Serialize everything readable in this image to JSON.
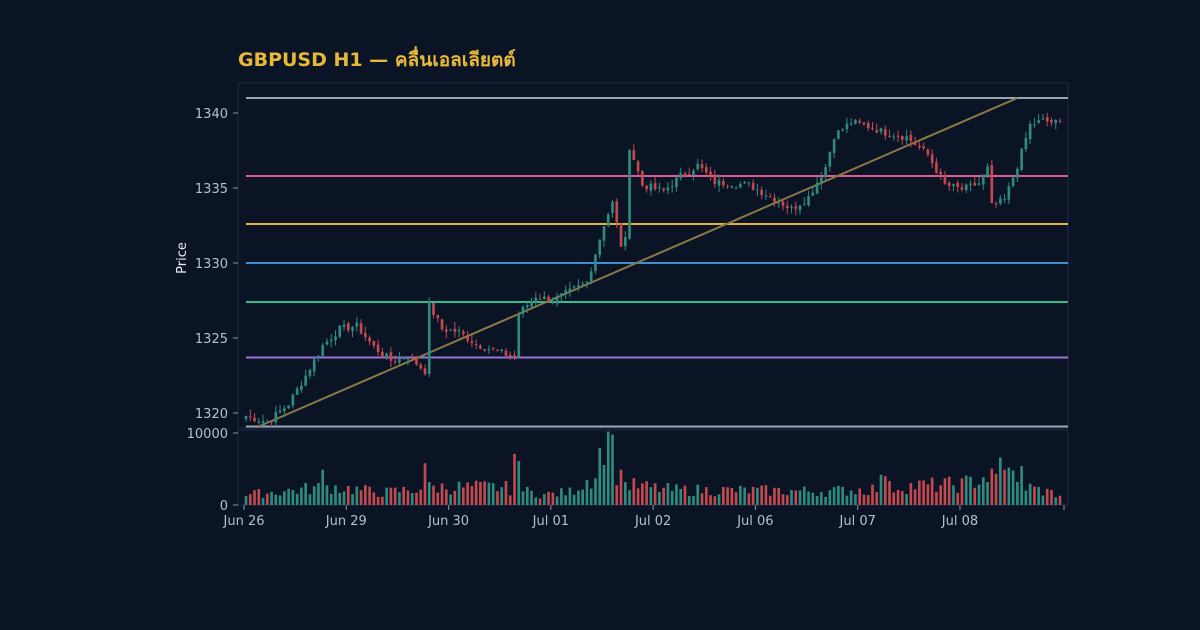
{
  "chart_data": {
    "type": "candlestick",
    "title": "GBPUSD H1 — คลื่นเอลเลียตต์",
    "ylabel": "Price",
    "ylim": [
      1319,
      1342
    ],
    "volume_ylim": [
      0,
      10000
    ],
    "y_ticks": [
      1320,
      1325,
      1330,
      1335,
      1340
    ],
    "volume_ticks": [
      0,
      10000
    ],
    "x_ticks": [
      {
        "index": 0,
        "label": "Jun 26"
      },
      {
        "index": 24,
        "label": "Jun 29"
      },
      {
        "index": 48,
        "label": "Jun 30"
      },
      {
        "index": 72,
        "label": "Jul 01"
      },
      {
        "index": 96,
        "label": "Jul 02"
      },
      {
        "index": 120,
        "label": "Jul 06"
      },
      {
        "index": 144,
        "label": "Jul 07"
      },
      {
        "index": 168,
        "label": "Jul 08"
      }
    ],
    "candle_count": 192,
    "close_path": [
      [
        0,
        1319.8
      ],
      [
        5,
        1319.4
      ],
      [
        10,
        1320.6
      ],
      [
        14,
        1322.5
      ],
      [
        18,
        1324.5
      ],
      [
        22,
        1325.6
      ],
      [
        26,
        1325.8
      ],
      [
        30,
        1324.4
      ],
      [
        34,
        1323.5
      ],
      [
        38,
        1323.8
      ],
      [
        42,
        1322.8
      ],
      [
        43,
        1327.2
      ],
      [
        46,
        1325.6
      ],
      [
        50,
        1325.4
      ],
      [
        54,
        1324.6
      ],
      [
        60,
        1324.0
      ],
      [
        63,
        1323.7
      ],
      [
        64,
        1326.6
      ],
      [
        68,
        1327.8
      ],
      [
        72,
        1327.5
      ],
      [
        76,
        1328.1
      ],
      [
        80,
        1328.7
      ],
      [
        84,
        1332.6
      ],
      [
        86,
        1334.0
      ],
      [
        88,
        1331.2
      ],
      [
        89,
        1331.5
      ],
      [
        90,
        1337.8
      ],
      [
        93,
        1335.2
      ],
      [
        98,
        1334.8
      ],
      [
        102,
        1335.8
      ],
      [
        106,
        1336.5
      ],
      [
        110,
        1335.4
      ],
      [
        114,
        1335.3
      ],
      [
        118,
        1335.2
      ],
      [
        122,
        1334.6
      ],
      [
        128,
        1333.6
      ],
      [
        132,
        1334.4
      ],
      [
        136,
        1336.4
      ],
      [
        138,
        1338.5
      ],
      [
        142,
        1339.4
      ],
      [
        146,
        1339.1
      ],
      [
        150,
        1338.7
      ],
      [
        155,
        1338.4
      ],
      [
        160,
        1337.2
      ],
      [
        164,
        1335.2
      ],
      [
        168,
        1334.9
      ],
      [
        172,
        1335.3
      ],
      [
        174,
        1336.3
      ],
      [
        175,
        1333.8
      ],
      [
        178,
        1334.2
      ],
      [
        181,
        1336.5
      ],
      [
        184,
        1339.2
      ],
      [
        187,
        1339.5
      ],
      [
        191,
        1339.3
      ]
    ],
    "volume_profile": [
      [
        0,
        1500
      ],
      [
        20,
        2700
      ],
      [
        32,
        1800
      ],
      [
        44,
        2600
      ],
      [
        60,
        2600
      ],
      [
        70,
        1500
      ],
      [
        76,
        1900
      ],
      [
        82,
        4500
      ],
      [
        84,
        9800
      ],
      [
        88,
        3000
      ],
      [
        100,
        2200
      ],
      [
        120,
        2100
      ],
      [
        136,
        2000
      ],
      [
        146,
        2300
      ],
      [
        156,
        2800
      ],
      [
        168,
        3000
      ],
      [
        174,
        4200
      ],
      [
        186,
        2200
      ],
      [
        191,
        1500
      ]
    ],
    "volume_spikes": [
      {
        "index": 86,
        "value": 9800
      },
      {
        "index": 88,
        "value": 4900
      },
      {
        "index": 63,
        "value": 7100
      },
      {
        "index": 64,
        "value": 6100
      },
      {
        "index": 42,
        "value": 5800
      },
      {
        "index": 86,
        "value": 9800
      },
      {
        "index": 177,
        "value": 6600
      },
      {
        "index": 178,
        "value": 4900
      },
      {
        "index": 179,
        "value": 5200
      },
      {
        "index": 180,
        "value": 4800
      },
      {
        "index": 182,
        "value": 5400
      },
      {
        "index": 18,
        "value": 4900
      },
      {
        "index": 149,
        "value": 4200
      },
      {
        "index": 150,
        "value": 4000
      }
    ],
    "levels": [
      {
        "price": 1341.0,
        "color": "#9aa6b4"
      },
      {
        "price": 1335.8,
        "color": "#e05a96"
      },
      {
        "price": 1332.6,
        "color": "#e6b23a"
      },
      {
        "price": 1330.0,
        "color": "#3f8fd6"
      },
      {
        "price": 1327.4,
        "color": "#2fbf8c"
      },
      {
        "price": 1323.7,
        "color": "#9b72d8"
      },
      {
        "price": 1319.1,
        "color": "#9aa6b4"
      }
    ],
    "trendline": {
      "from": [
        3,
        1319.1
      ],
      "to": [
        181,
        1341.0
      ],
      "color": "#8a7a45"
    },
    "colors": {
      "up": "#2e8b7e",
      "down": "#c4494f",
      "grid": "#1d2840",
      "panel_border": "#1e2a42"
    }
  }
}
